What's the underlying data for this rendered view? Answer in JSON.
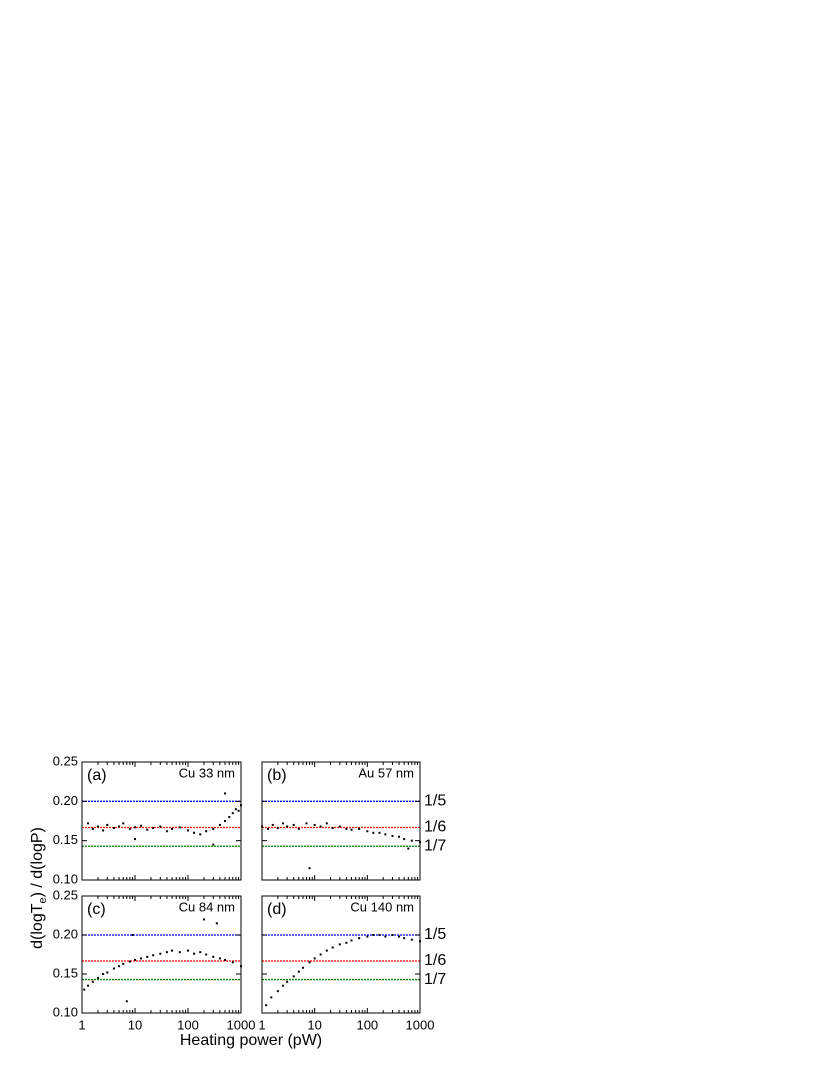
{
  "figure": {
    "xlabel": "Heating power (pW)",
    "ylabel": {
      "main": "d(logT",
      "sub": "e",
      "rest": ") / d(logP)"
    }
  },
  "chart_data": [
    {
      "type": "scatter",
      "panel": "(a)",
      "title": "Cu 33 nm",
      "log_x": true,
      "color": "#000000",
      "xlim": [
        1,
        1000
      ],
      "ylim": [
        0.1,
        0.25
      ],
      "xticks": [
        1,
        10,
        100,
        1000
      ],
      "yticks": [
        {
          "value": 0.1,
          "label": "0.10"
        },
        0.15,
        {
          "value": 0.2,
          "label": "0.20"
        },
        0.25
      ],
      "hlines": [
        {
          "value": 0.2,
          "color": "#0000ff"
        },
        {
          "value": 0.1667,
          "color": "#ff0000"
        },
        {
          "value": 0.1429,
          "color": "#008000"
        }
      ],
      "x": [
        1.3,
        1.6,
        2,
        2.5,
        3,
        4,
        5,
        6,
        8,
        10,
        13,
        17,
        22,
        30,
        40,
        50,
        70,
        100,
        130,
        170,
        220,
        300,
        400,
        500,
        600,
        700,
        800,
        900,
        1000,
        10,
        300,
        500
      ],
      "y": [
        0.172,
        0.165,
        0.168,
        0.163,
        0.17,
        0.166,
        0.168,
        0.172,
        0.165,
        0.167,
        0.169,
        0.164,
        0.166,
        0.168,
        0.162,
        0.165,
        0.167,
        0.163,
        0.16,
        0.158,
        0.162,
        0.165,
        0.17,
        0.175,
        0.18,
        0.185,
        0.19,
        0.188,
        0.195,
        0.152,
        0.145,
        0.21
      ]
    },
    {
      "type": "scatter",
      "panel": "(b)",
      "title": "Au 57 nm",
      "log_x": true,
      "color": "#000000",
      "xlim": [
        1,
        1000
      ],
      "ylim": [
        0.1,
        0.25
      ],
      "xticks": [
        1,
        10,
        100,
        1000
      ],
      "yticks": [
        {
          "value": 0.1,
          "label": "0.10"
        },
        0.15,
        {
          "value": 0.2,
          "label": "0.20"
        },
        0.25
      ],
      "hlines": [
        {
          "value": 0.2,
          "color": "#0000ff",
          "label": "1/5"
        },
        {
          "value": 0.1667,
          "color": "#ff0000",
          "label": "1/6"
        },
        {
          "value": 0.1429,
          "color": "#008000",
          "label": "1/7"
        }
      ],
      "x": [
        1,
        1.3,
        1.6,
        2,
        2.5,
        3,
        4,
        5,
        7,
        10,
        13,
        17,
        22,
        30,
        40,
        50,
        70,
        100,
        130,
        170,
        220,
        300,
        400,
        500,
        700,
        1000,
        8,
        600
      ],
      "y": [
        0.168,
        0.165,
        0.17,
        0.166,
        0.172,
        0.168,
        0.17,
        0.165,
        0.172,
        0.17,
        0.168,
        0.172,
        0.166,
        0.168,
        0.165,
        0.164,
        0.165,
        0.162,
        0.16,
        0.16,
        0.158,
        0.156,
        0.155,
        0.152,
        0.15,
        0.148,
        0.115,
        0.14
      ]
    },
    {
      "type": "scatter",
      "panel": "(c)",
      "title": "Cu 84 nm",
      "log_x": true,
      "color": "#000000",
      "xlim": [
        1,
        1000
      ],
      "ylim": [
        0.1,
        0.25
      ],
      "xticks": [
        1,
        10,
        100,
        1000
      ],
      "yticks": [
        {
          "value": 0.1,
          "label": "0.10"
        },
        0.15,
        {
          "value": 0.2,
          "label": "0.20"
        },
        0.25
      ],
      "hlines": [
        {
          "value": 0.2,
          "color": "#0000ff"
        },
        {
          "value": 0.1667,
          "color": "#ff0000"
        },
        {
          "value": 0.1429,
          "color": "#008000"
        }
      ],
      "x": [
        1.1,
        1.3,
        1.6,
        2,
        2.5,
        3,
        4,
        5,
        6,
        8,
        10,
        13,
        17,
        22,
        30,
        40,
        50,
        70,
        100,
        130,
        170,
        220,
        300,
        400,
        500,
        700,
        1000,
        7,
        9,
        200,
        350
      ],
      "y": [
        0.13,
        0.135,
        0.14,
        0.145,
        0.15,
        0.152,
        0.157,
        0.16,
        0.163,
        0.166,
        0.168,
        0.17,
        0.172,
        0.174,
        0.176,
        0.178,
        0.18,
        0.178,
        0.18,
        0.176,
        0.178,
        0.175,
        0.172,
        0.17,
        0.168,
        0.165,
        0.16,
        0.115,
        0.2,
        0.22,
        0.215
      ]
    },
    {
      "type": "scatter",
      "panel": "(d)",
      "title": "Cu 140 nm",
      "log_x": true,
      "color": "#000000",
      "xlim": [
        1,
        1000
      ],
      "ylim": [
        0.1,
        0.25
      ],
      "xticks": [
        1,
        10,
        100,
        1000
      ],
      "yticks": [
        {
          "value": 0.1,
          "label": "0.10"
        },
        0.15,
        {
          "value": 0.2,
          "label": "0.20"
        },
        0.25
      ],
      "hlines": [
        {
          "value": 0.2,
          "color": "#0000ff",
          "label": "1/5"
        },
        {
          "value": 0.1667,
          "color": "#ff0000",
          "label": "1/6"
        },
        {
          "value": 0.1429,
          "color": "#008000",
          "label": "1/7"
        }
      ],
      "x": [
        1.2,
        1.5,
        2,
        2.5,
        3,
        4,
        5,
        6,
        8,
        10,
        13,
        17,
        22,
        30,
        40,
        50,
        70,
        100,
        130,
        170,
        220,
        300,
        400,
        500,
        700,
        1000
      ],
      "y": [
        0.11,
        0.12,
        0.128,
        0.135,
        0.14,
        0.147,
        0.153,
        0.158,
        0.165,
        0.17,
        0.175,
        0.18,
        0.184,
        0.188,
        0.19,
        0.193,
        0.196,
        0.198,
        0.2,
        0.2,
        0.198,
        0.2,
        0.198,
        0.196,
        0.194,
        0.192
      ]
    }
  ]
}
